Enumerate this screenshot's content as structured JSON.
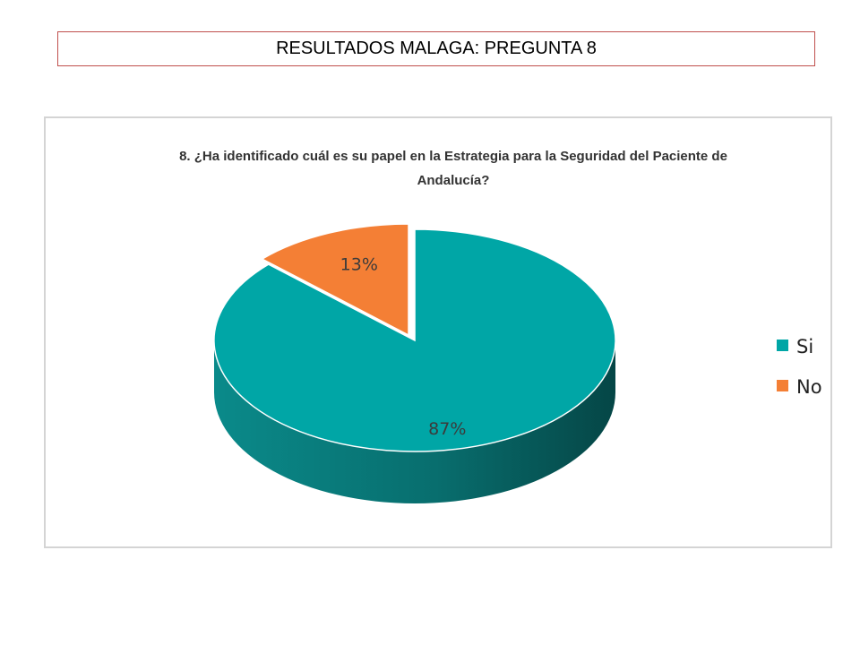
{
  "slide": {
    "title": "RESULTADOS MALAGA: PREGUNTA 8"
  },
  "chart_data": {
    "type": "pie",
    "title_lines": [
      "8. ¿Ha identificado cuál es su papel en la Estrategia para la Seguridad del Paciente de",
      "Andalucía?"
    ],
    "categories": [
      "Si",
      "No"
    ],
    "values": [
      87,
      13
    ],
    "labels": [
      "87%",
      "13%"
    ],
    "colors": [
      "#00a6a6",
      "#f47f35"
    ],
    "exploded": "No",
    "legend_position": "right",
    "style": "3d"
  }
}
